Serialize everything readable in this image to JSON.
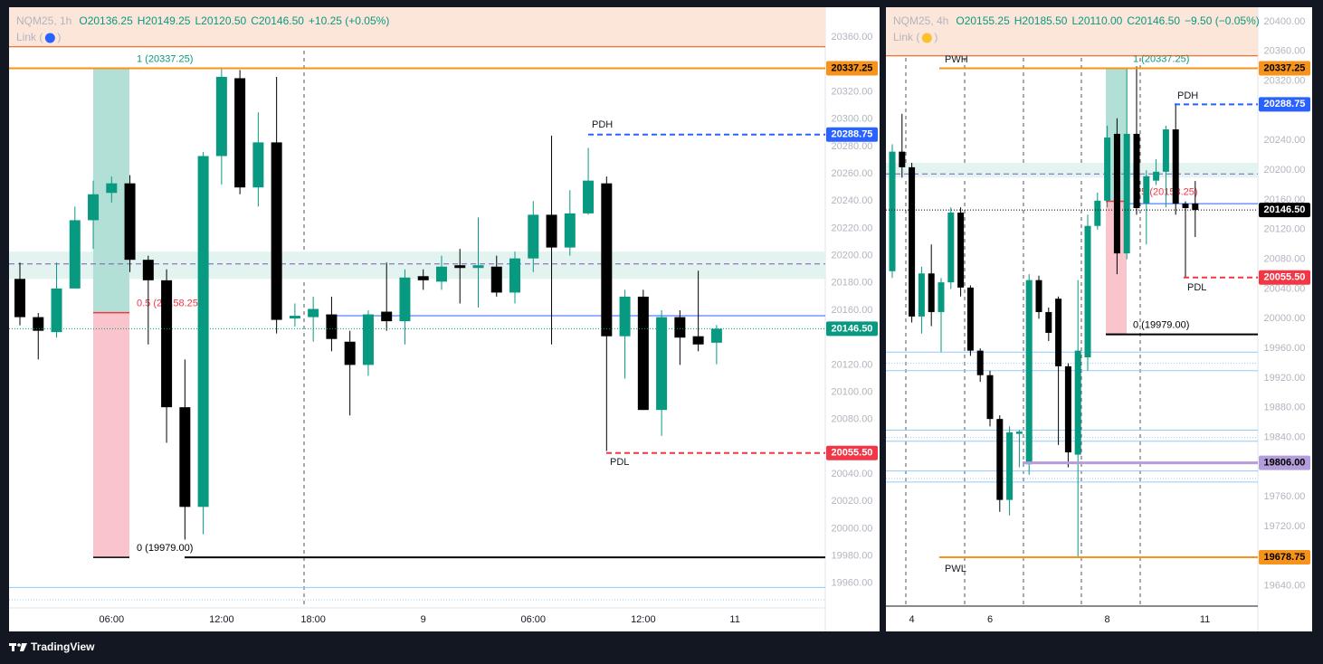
{
  "chart_data": [
    {
      "type": "candlestick",
      "title": "NQM25, 1h",
      "header": [
        "O20136.25",
        "H20149.25",
        "L20120.50",
        "C20146.50",
        "+10.25 (+0.05%)"
      ],
      "link": "Link (",
      "link_close": ")",
      "link_color": "#2962ff",
      "categories": [
        null,
        null,
        null,
        null,
        null,
        "06:00",
        null,
        null,
        null,
        null,
        null,
        "12:00",
        null,
        null,
        null,
        null,
        "18:00",
        null,
        null,
        null,
        null,
        null,
        "9",
        null,
        null,
        null,
        null,
        null,
        "06:00",
        null,
        null,
        null,
        null,
        null,
        "12:00",
        null,
        null,
        null,
        null,
        "11"
      ],
      "open": [
        20183,
        20155,
        20144,
        20176,
        20226,
        20246,
        20253,
        20197,
        20182,
        20089,
        20016,
        20273,
        20330,
        20250,
        20283,
        20154,
        20155,
        20157,
        20137,
        20120,
        20159,
        20152,
        20185,
        20181,
        20193,
        20191,
        20192,
        20173,
        20198,
        20230,
        20206,
        20231,
        20253,
        20141,
        20170,
        20087,
        20155,
        20141,
        20136.25,
        null
      ],
      "high": [
        20195,
        20158,
        20195,
        20236,
        20255,
        20258,
        20259,
        20200,
        20190,
        20124,
        20276,
        20338,
        20336,
        20305,
        20331,
        20165,
        20170,
        20170,
        20145,
        20160,
        20195,
        20190,
        20190,
        20200,
        20205,
        20228,
        20200,
        20203,
        20240,
        20288,
        20248,
        20279,
        20258,
        20175,
        20175,
        20160,
        20160,
        20189,
        20149.25,
        null
      ],
      "low": [
        20149,
        20124,
        20140,
        20176,
        20205,
        20239,
        20188,
        20135,
        20063,
        19992,
        19996,
        20252,
        20245,
        20236,
        20143,
        20148,
        20137,
        20130,
        20083,
        20112,
        20145,
        20135,
        20175,
        20175,
        20165,
        20162,
        20170,
        20165,
        20188,
        20135,
        20200,
        20230,
        20057,
        20110,
        20087,
        20068,
        20120,
        20130,
        20120.5,
        null
      ],
      "close": [
        20155,
        20145,
        20176,
        20226,
        20245,
        20253,
        20197,
        20182,
        20089,
        20016,
        20273,
        20331,
        20250,
        20283,
        20153,
        20156,
        20161,
        20139,
        20120,
        20157,
        20152,
        20184,
        20182,
        20192,
        20191,
        20193,
        20173,
        20198,
        20230,
        20206,
        20231,
        20255,
        20141,
        20170,
        20087,
        20155,
        20140,
        20135,
        20146.5,
        null
      ],
      "up_color": "#089981",
      "down_color": "#000000",
      "grid": false,
      "ylim": [
        19942,
        20382
      ],
      "yticks": [
        {
          "value": 19960,
          "label": "19960.00"
        },
        {
          "value": 19980,
          "label": "19980.00"
        },
        {
          "value": 20000,
          "label": "20000.00"
        },
        {
          "value": 20020,
          "label": "20020.00"
        },
        {
          "value": 20040,
          "label": "20040.00"
        },
        {
          "value": 20060,
          "label": "20060.00"
        },
        {
          "value": 20080,
          "label": "20080.00"
        },
        {
          "value": 20100,
          "label": "20100.00"
        },
        {
          "value": 20120,
          "label": "20120.00"
        },
        {
          "value": 20140,
          "label": "20140.00"
        },
        {
          "value": 20160,
          "label": "20160.00"
        },
        {
          "value": 20180,
          "label": "20180.00"
        },
        {
          "value": 20200,
          "label": "20200.00"
        },
        {
          "value": 20220,
          "label": "20220.00"
        },
        {
          "value": 20240,
          "label": "20240.00"
        },
        {
          "value": 20260,
          "label": "20260.00"
        },
        {
          "value": 20280,
          "label": "20280.00"
        },
        {
          "value": 20300,
          "label": "20300.00"
        },
        {
          "value": 20320,
          "label": "20320.00"
        },
        {
          "value": 20340,
          "label": "20340.00"
        },
        {
          "value": 20360,
          "label": "20360.00"
        }
      ],
      "zones": [
        {
          "from": 20353,
          "to": 20382,
          "color": "#fce6da"
        },
        {
          "from": 20183,
          "to": 20203,
          "color": "#e3f3ef"
        }
      ],
      "lines": [
        {
          "value": 20353,
          "color": "#e65100",
          "style": "solid"
        },
        {
          "value": 20194,
          "color": "#7e57c2",
          "style": "dashed"
        },
        {
          "value": 20156,
          "color": "#2962ff",
          "style": "solid"
        },
        {
          "value": 19979,
          "color": "#000000",
          "style": "solid"
        },
        {
          "value": 19957,
          "color": "#90caf9",
          "style": "solid"
        },
        {
          "value": 19948,
          "color": "#90caf9",
          "style": "dotted"
        }
      ],
      "fib": {
        "up_color": "#b2dfd6",
        "down_color": "#f9c4cc",
        "levels": [
          {
            "value": 20337.25,
            "label": "1 (20337.25)",
            "color": "#089981"
          },
          {
            "value": 20158.25,
            "label": "0.5 (20158.25)",
            "color": "#f23645"
          },
          {
            "value": 19979,
            "label": "0 (19979.00)",
            "color": "#000000"
          }
        ]
      },
      "levels": [
        {
          "value": 20337.25,
          "label": "20337.25",
          "color": "#f7931a",
          "text_color": "#000000",
          "style": "solid"
        },
        {
          "value": 20288.75,
          "label": "20288.75",
          "color": "#2962ff",
          "text_color": "#ffffff",
          "style": "dashed"
        },
        {
          "value": 20146.5,
          "label": "20146.50",
          "color": "#089981",
          "text_color": "#ffffff",
          "style": "dotted"
        },
        {
          "value": 20055.5,
          "label": "20055.50",
          "color": "#f23645",
          "text_color": "#ffffff",
          "style": "dashed"
        }
      ],
      "annotations": [
        "PDH",
        "PDL"
      ]
    },
    {
      "type": "candlestick",
      "title": "NQM25, 4h",
      "header": [
        "O20155.25",
        "H20185.50",
        "L20110.00",
        "C20146.50",
        "−9.50 (−0.05%)"
      ],
      "link": "Link (",
      "link_close": ")",
      "link_color": "#fbc02d",
      "categories": [
        null,
        null,
        "4",
        null,
        null,
        null,
        null,
        null,
        null,
        null,
        "6",
        null,
        null,
        null,
        null,
        null,
        null,
        null,
        null,
        null,
        null,
        null,
        "8",
        null,
        null,
        null,
        null,
        null,
        null,
        null,
        null,
        null,
        "11"
      ],
      "open": [
        20064,
        20225,
        20204,
        20003,
        20061,
        20009,
        20049,
        20143,
        20042,
        19957,
        19924,
        19865,
        19756,
        19845,
        19804,
        20052,
        20009,
        20027,
        19936,
        19817,
        19948,
        20125,
        20159,
        20249,
        20088,
        20249,
        20155,
        20186,
        20198,
        20255,
        20155,
        20155.25,
        null
      ],
      "high": [
        20235,
        20276,
        20210,
        20070,
        20100,
        20055,
        20150,
        20150,
        20045,
        19960,
        19930,
        19870,
        19855,
        19850,
        20060,
        20058,
        20015,
        20030,
        19940,
        20052,
        20140,
        20170,
        20260,
        20270,
        20337,
        20340,
        20200,
        20215,
        20260,
        20290,
        20158,
        20185.5,
        null
      ],
      "low": [
        20055,
        20190,
        19995,
        19980,
        19990,
        19955,
        20040,
        20030,
        19950,
        19915,
        19855,
        19740,
        19735,
        19800,
        19790,
        20000,
        19970,
        19830,
        19800,
        19680,
        19930,
        20120,
        20150,
        20060,
        20080,
        20140,
        20100,
        20180,
        20150,
        20140,
        20055,
        20110,
        null
      ],
      "close": [
        20225,
        20204,
        20003,
        20061,
        20009,
        20049,
        20143,
        20042,
        19957,
        19924,
        19865,
        19756,
        19847,
        19848,
        20052,
        20009,
        19981,
        19936,
        19820,
        19957,
        20125,
        20159,
        20244,
        20088,
        20249,
        20149,
        20192,
        20198,
        20255,
        20155,
        20149,
        20146.5,
        null
      ],
      "up_color": "#089981",
      "down_color": "#000000",
      "grid": false,
      "ylim": [
        19613,
        20419.5
      ],
      "yticks": [
        {
          "value": 19640,
          "label": "19640.00"
        },
        {
          "value": 19680,
          "label": "19680.00"
        },
        {
          "value": 19720,
          "label": "19720.00"
        },
        {
          "value": 19760,
          "label": "19760.00"
        },
        {
          "value": 19800,
          "label": "19800.00"
        },
        {
          "value": 19840,
          "label": "19840.00"
        },
        {
          "value": 19880,
          "label": "19880.00"
        },
        {
          "value": 19920,
          "label": "19920.00"
        },
        {
          "value": 19960,
          "label": "19960.00"
        },
        {
          "value": 20000,
          "label": "20000.00"
        },
        {
          "value": 20040,
          "label": "20040.00"
        },
        {
          "value": 20080,
          "label": "20080.00"
        },
        {
          "value": 20120,
          "label": "20120.00"
        },
        {
          "value": 20160,
          "label": "20160.00"
        },
        {
          "value": 20200,
          "label": "20200.00"
        },
        {
          "value": 20240,
          "label": "20240.00"
        },
        {
          "value": 20280,
          "label": "20280.00"
        },
        {
          "value": 20320,
          "label": "20320.00"
        },
        {
          "value": 20360,
          "label": "20360.00"
        },
        {
          "value": 20400,
          "label": "20400.00"
        }
      ],
      "zones": [
        {
          "from": 20354,
          "to": 20419.5,
          "color": "#fce6da"
        },
        {
          "from": 20190,
          "to": 20210,
          "color": "#e3f3ef"
        }
      ],
      "lines": [
        {
          "value": 20354,
          "color": "#e65100",
          "style": "solid"
        },
        {
          "value": 20195,
          "color": "#7e57c2",
          "style": "dashed"
        },
        {
          "value": 20155,
          "color": "#2962ff",
          "style": "solid"
        },
        {
          "value": 19979,
          "color": "#000000",
          "style": "solid"
        },
        {
          "value": 19955,
          "color": "#90caf9",
          "style": "solid"
        },
        {
          "value": 19940,
          "color": "#90caf9",
          "style": "dotted"
        },
        {
          "value": 19930,
          "color": "#90caf9",
          "style": "solid"
        },
        {
          "value": 19850,
          "color": "#90caf9",
          "style": "solid"
        },
        {
          "value": 19840,
          "color": "#90caf9",
          "style": "dotted"
        },
        {
          "value": 19835,
          "color": "#90caf9",
          "style": "solid"
        },
        {
          "value": 19795,
          "color": "#90caf9",
          "style": "solid"
        },
        {
          "value": 19785,
          "color": "#90caf9",
          "style": "dotted"
        },
        {
          "value": 19780,
          "color": "#90caf9",
          "style": "solid"
        }
      ],
      "fib": {
        "up_color": "#b2dfd6",
        "down_color": "#f9c4cc",
        "levels": [
          {
            "value": 20337.25,
            "label": "1 (20337.25)",
            "color": "#089981"
          },
          {
            "value": 20158.25,
            "label": "0.5 (20158.25)",
            "color": "#f23645"
          },
          {
            "value": 19979,
            "label": "0 (19979.00)",
            "color": "#000000"
          }
        ]
      },
      "levels": [
        {
          "value": 20337.25,
          "label": "20337.25",
          "color": "#f7931a",
          "text_color": "#000000",
          "style": "solid"
        },
        {
          "value": 20288.75,
          "label": "20288.75",
          "color": "#2962ff",
          "text_color": "#ffffff",
          "style": "dashed"
        },
        {
          "value": 20146.5,
          "label": "20146.50",
          "color": "#000000",
          "text_color": "#ffffff",
          "style": "dotted"
        },
        {
          "value": 20055.5,
          "label": "20055.50",
          "color": "#f23645",
          "text_color": "#ffffff",
          "style": "dashed"
        },
        {
          "value": 19806,
          "label": "19806.00",
          "color": "#b39ddb",
          "text_color": "#000000",
          "style": "solid"
        },
        {
          "value": 19678.75,
          "label": "19678.75",
          "color": "#f7931a",
          "text_color": "#000000",
          "style": "solid"
        }
      ],
      "annotations": [
        "PWH",
        "PWL",
        "PDH",
        "PDL"
      ]
    }
  ],
  "footer": {
    "brand": "TradingView"
  }
}
